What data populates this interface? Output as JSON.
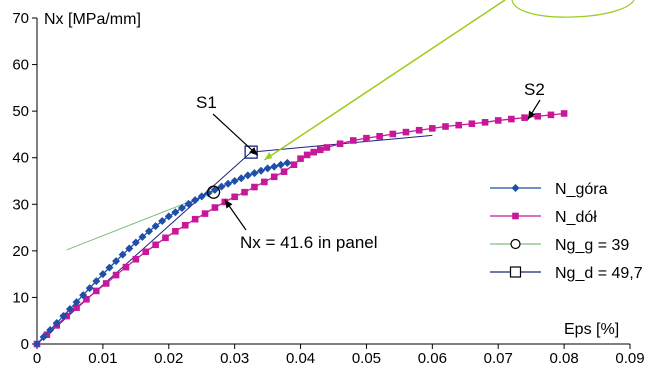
{
  "chart_data": {
    "type": "line",
    "ylabel": "Nx [MPa/mm]",
    "xlabel": "Eps  [%]",
    "xlim": [
      0,
      0.09
    ],
    "ylim": [
      0,
      70
    ],
    "xticks": [
      0,
      0.01,
      0.02,
      0.03,
      0.04,
      0.05,
      0.06,
      0.07,
      0.08,
      0.09
    ],
    "xtick_labels": [
      "0",
      "0.01",
      "0.02",
      "0.03",
      "0.04",
      "0.05",
      "0.06",
      "0.07",
      "0.08",
      "0.09"
    ],
    "yticks": [
      0,
      10,
      20,
      30,
      40,
      50,
      60,
      70
    ],
    "ytick_labels": [
      "0",
      "10",
      "20",
      "30",
      "40",
      "50",
      "60",
      "70"
    ],
    "grid": false,
    "legend_position": "right",
    "colors": {
      "n_gora": "#1f4fa8",
      "n_dol": "#c8189a",
      "ng_g": "#7fbf7f",
      "ng_d": "#1a237e",
      "arrow": "#9ccc1f"
    },
    "series": [
      {
        "name": "N_góra",
        "marker": "diamond",
        "color": "#1f4fa8",
        "x": [
          0,
          0.001,
          0.002,
          0.003,
          0.004,
          0.005,
          0.006,
          0.007,
          0.008,
          0.009,
          0.01,
          0.011,
          0.012,
          0.013,
          0.014,
          0.015,
          0.016,
          0.017,
          0.018,
          0.019,
          0.02,
          0.021,
          0.022,
          0.023,
          0.024,
          0.025,
          0.026,
          0.027,
          0.028,
          0.029,
          0.03,
          0.031,
          0.032,
          0.033,
          0.034,
          0.035,
          0.036,
          0.037,
          0.038
        ],
        "y": [
          0,
          1.5,
          3.0,
          4.5,
          6.0,
          7.5,
          9.0,
          10.5,
          12.0,
          13.5,
          15.0,
          16.4,
          17.8,
          19.2,
          20.5,
          21.8,
          23.0,
          24.2,
          25.3,
          26.4,
          27.4,
          28.3,
          29.2,
          30.1,
          30.9,
          31.7,
          32.4,
          33.1,
          33.8,
          34.4,
          35.0,
          35.6,
          36.2,
          36.7,
          37.2,
          37.7,
          38.1,
          38.5,
          38.9
        ]
      },
      {
        "name": "N_dół",
        "marker": "square",
        "color": "#c8189a",
        "x": [
          0,
          0.0015,
          0.003,
          0.0045,
          0.006,
          0.0075,
          0.009,
          0.0105,
          0.012,
          0.0135,
          0.015,
          0.0165,
          0.018,
          0.0195,
          0.021,
          0.0225,
          0.024,
          0.0255,
          0.027,
          0.0285,
          0.03,
          0.0315,
          0.033,
          0.0345,
          0.036,
          0.0375,
          0.039,
          0.04,
          0.041,
          0.042,
          0.043,
          0.044,
          0.046,
          0.048,
          0.05,
          0.052,
          0.054,
          0.056,
          0.058,
          0.06,
          0.062,
          0.064,
          0.066,
          0.068,
          0.07,
          0.072,
          0.074,
          0.076,
          0.078,
          0.08
        ],
        "y": [
          0,
          2.0,
          4.0,
          6.0,
          7.8,
          9.6,
          11.4,
          13.0,
          14.8,
          16.5,
          18.2,
          19.8,
          21.3,
          22.8,
          24.2,
          25.5,
          26.8,
          28.0,
          29.3,
          30.5,
          31.6,
          32.6,
          33.7,
          34.8,
          35.9,
          37.0,
          38.5,
          39.8,
          40.6,
          41.2,
          41.7,
          42.2,
          43.0,
          43.7,
          44.2,
          44.6,
          45.1,
          45.5,
          45.9,
          46.3,
          46.7,
          47.0,
          47.3,
          47.6,
          48.0,
          48.3,
          48.6,
          48.9,
          49.2,
          49.5
        ]
      },
      {
        "name": "Ng_g = 39",
        "marker": "circle-open",
        "color": "#7fbf7f",
        "x": [
          0.0045,
          0.0268
        ],
        "y": [
          20.2,
          32.6
        ],
        "point": [
          0.0268,
          32.6
        ]
      },
      {
        "name": "Ng_d = 49,7",
        "marker": "square-open",
        "color": "#1a237e",
        "x": [
          0.0275,
          0.0325
        ],
        "y": [
          40.6,
          41.2
        ],
        "point": [
          0.0325,
          41.2
        ]
      }
    ],
    "tangent_lines": [
      {
        "x": [
          0.0,
          0.0325
        ],
        "y": [
          0,
          41.2
        ],
        "color": "#1a237e"
      },
      {
        "x": [
          0.0325,
          0.06
        ],
        "y": [
          41.2,
          44.8
        ],
        "color": "#1a237e"
      }
    ],
    "annotations": [
      {
        "id": "s1",
        "text": "S1",
        "arrow_to": [
          0.0335,
          40.5
        ]
      },
      {
        "id": "s2",
        "text": "S2",
        "arrow_to": [
          0.0745,
          48.2
        ]
      },
      {
        "id": "nx",
        "text": "Nx = 41.6 in panel",
        "arrow_to": [
          0.0285,
          31.0
        ]
      }
    ]
  }
}
